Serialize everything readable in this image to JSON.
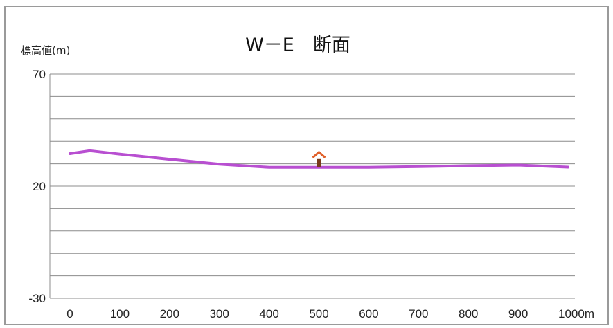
{
  "chart_data": {
    "type": "line",
    "title": "W－E　断面",
    "ylabel": "標高値(m)",
    "xlabel": "",
    "x_tick_labels": [
      "0",
      "100",
      "200",
      "300",
      "400",
      "500",
      "600",
      "700",
      "800",
      "900",
      "1000m"
    ],
    "y_tick_labels": [
      "70",
      "20",
      "-30"
    ],
    "xlim": [
      0,
      1000
    ],
    "ylim": [
      -30,
      70
    ],
    "grid": true,
    "series": [
      {
        "color": "#b84fd1",
        "x": [
          0,
          40,
          100,
          200,
          300,
          400,
          500,
          600,
          700,
          800,
          900,
          1000
        ],
        "y": [
          34.5,
          35.8,
          34.3,
          32.0,
          29.8,
          28.4,
          28.4,
          28.4,
          28.7,
          29.1,
          29.4,
          28.5
        ]
      }
    ],
    "marker": {
      "x": 500,
      "y": 28.4,
      "color": "#e0602a",
      "icon": "landmark-arrow-icon"
    }
  }
}
